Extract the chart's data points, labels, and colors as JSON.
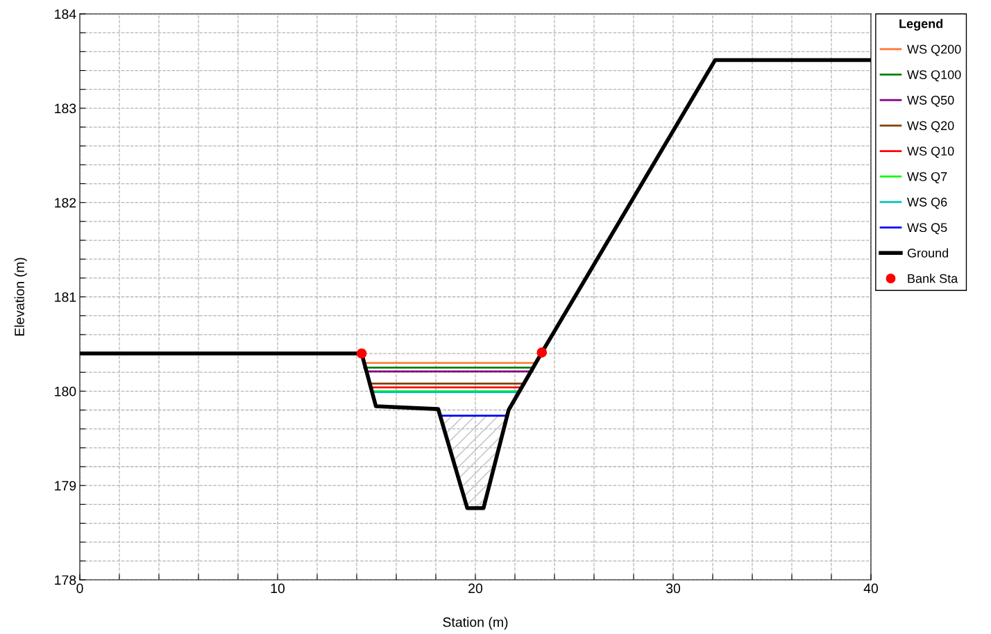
{
  "chart_data": {
    "type": "line",
    "xlabel": "Station (m)",
    "ylabel": "Elevation (m)",
    "legend_title": "Legend",
    "legend": "right",
    "grid": true,
    "line_style": "solid",
    "xlim": [
      0,
      40
    ],
    "ylim": [
      178,
      184
    ],
    "xticks": [
      0,
      {
        "value": 2,
        "label": null
      },
      {
        "value": 4,
        "label": null
      },
      {
        "value": 6,
        "label": null
      },
      {
        "value": 8,
        "label": null
      },
      10,
      {
        "value": 12,
        "label": null
      },
      {
        "value": 14,
        "label": null
      },
      {
        "value": 16,
        "label": null
      },
      {
        "value": 18,
        "label": null
      },
      20,
      {
        "value": 22,
        "label": null
      },
      {
        "value": 24,
        "label": null
      },
      {
        "value": 26,
        "label": null
      },
      {
        "value": 28,
        "label": null
      },
      30,
      {
        "value": 32,
        "label": null
      },
      {
        "value": 34,
        "label": null
      },
      {
        "value": 36,
        "label": null
      },
      {
        "value": 38,
        "label": null
      },
      40
    ],
    "yticks": [
      178,
      {
        "value": 178.2,
        "label": null
      },
      {
        "value": 178.4,
        "label": null
      },
      {
        "value": 178.6,
        "label": null
      },
      {
        "value": 178.8,
        "label": null
      },
      179,
      {
        "value": 179.2,
        "label": null
      },
      {
        "value": 179.4,
        "label": null
      },
      {
        "value": 179.6,
        "label": null
      },
      {
        "value": 179.8,
        "label": null
      },
      180,
      {
        "value": 180.2,
        "label": null
      },
      {
        "value": 180.4,
        "label": null
      },
      {
        "value": 180.6,
        "label": null
      },
      {
        "value": 180.8,
        "label": null
      },
      181,
      {
        "value": 181.2,
        "label": null
      },
      {
        "value": 181.4,
        "label": null
      },
      {
        "value": 181.6,
        "label": null
      },
      {
        "value": 181.8,
        "label": null
      },
      182,
      {
        "value": 182.2,
        "label": null
      },
      {
        "value": 182.4,
        "label": null
      },
      {
        "value": 182.6,
        "label": null
      },
      {
        "value": 182.8,
        "label": null
      },
      183,
      {
        "value": 183.2,
        "label": null
      },
      {
        "value": 183.4,
        "label": null
      },
      {
        "value": 183.6,
        "label": null
      },
      {
        "value": 183.8,
        "label": null
      },
      184
    ],
    "series": [
      {
        "name": "WS Q200",
        "color": "#ff8040",
        "x": [
          14.35,
          23.08
        ],
        "values": [
          180.3,
          180.3
        ]
      },
      {
        "name": "WS Q100",
        "color": "#008000",
        "x": [
          14.38,
          22.97
        ],
        "values": [
          180.25,
          180.25
        ]
      },
      {
        "name": "WS Q50",
        "color": "#800080",
        "x": [
          14.45,
          22.88
        ],
        "values": [
          180.21,
          180.21
        ]
      },
      {
        "name": "WS Q20",
        "color": "#804000",
        "x": [
          14.62,
          22.5
        ],
        "values": [
          180.08,
          180.08
        ]
      },
      {
        "name": "WS Q10",
        "color": "#ff0000",
        "x": [
          14.69,
          22.36
        ],
        "values": [
          180.04,
          180.04
        ]
      },
      {
        "name": "WS Q7",
        "color": "#00ff00",
        "x": [
          14.76,
          22.26
        ],
        "values": [
          180.0,
          180.0
        ]
      },
      {
        "name": "WS Q6",
        "color": "#00c0c0",
        "x": [
          14.78,
          22.24
        ],
        "values": [
          179.99,
          179.99
        ]
      },
      {
        "name": "WS Q5",
        "color": "#0000ff",
        "x": [
          18.25,
          21.64
        ],
        "values": [
          179.74,
          179.74
        ]
      },
      {
        "name": "Ground",
        "color": "#000000",
        "x": [
          0,
          14.25,
          14.97,
          18.12,
          19.59,
          20.41,
          21.68,
          23.36,
          32.12,
          40
        ],
        "values": [
          180.4,
          180.4,
          179.84,
          179.81,
          178.76,
          178.76,
          179.8,
          180.41,
          183.51,
          183.51
        ]
      },
      {
        "name": "Bank Sta",
        "type": "scatter",
        "marker": "circle",
        "color": "#ff0000",
        "x": [
          14.25,
          23.36
        ],
        "values": [
          180.4,
          180.41
        ]
      }
    ]
  }
}
